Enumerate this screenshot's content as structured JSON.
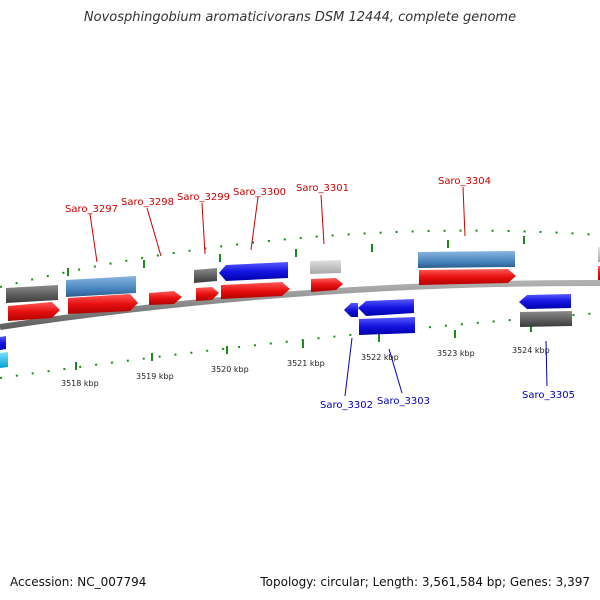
{
  "title": "Novosphingobium aromaticivorans DSM 12444, complete genome",
  "footer": {
    "accession": "Accession: NC_007794",
    "summary": "Topology: circular; Length: 3,561,584 bp; Genes: 3,397"
  },
  "axis_labels": [
    "3518 kbp",
    "3519 kbp",
    "3520 kbp",
    "3521 kbp",
    "3522 kbp",
    "3523 kbp",
    "3524 kbp"
  ],
  "gene_labels": {
    "forward": [
      "Saro_3297",
      "Saro_3298",
      "Saro_3299",
      "Saro_3300",
      "Saro_3301",
      "Saro_3304"
    ],
    "reverse": [
      "Saro_3302",
      "Saro_3303",
      "Saro_3305"
    ]
  },
  "colors": {
    "forward_gene": "#e81010",
    "reverse_gene": "#1414e0",
    "forward_label": "#cc0000",
    "reverse_label": "#0000bb",
    "feature_steel": "#4a86c0",
    "feature_gray": "#5a5a5a",
    "feature_light": "#bdbdbd",
    "cyan": "#22c0ee",
    "backbone": "#8a8a8a",
    "tick": "#1a8a1a"
  }
}
